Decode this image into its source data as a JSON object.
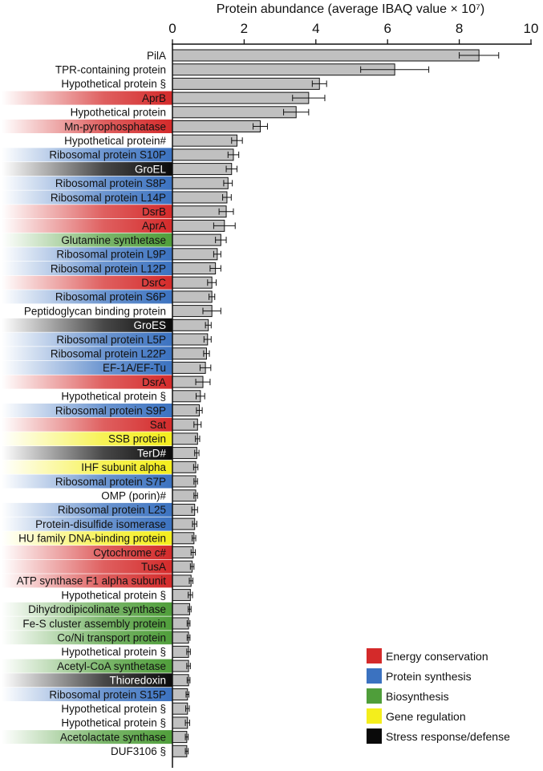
{
  "chart_data": {
    "type": "bar",
    "orientation": "horizontal",
    "title": "",
    "xlabel": "Protein abundance (average IBAQ value × 10⁷)",
    "ylabel": "",
    "xlim": [
      0,
      10
    ],
    "xticks": [
      "0",
      "2",
      "4",
      "6",
      "8",
      "10"
    ],
    "grid": false,
    "legend_position": "bottom-right",
    "categories": [
      "Energy conservation",
      "Protein synthesis",
      "Biosynthesis",
      "Gene regulation",
      "Stress response/defense"
    ],
    "category_colors": {
      "energy": "#d42a2a",
      "protein": "#3b72c0",
      "biosynthesis": "#4f9e3a",
      "gene": "#f4ee1c",
      "stress": "#0a0a0a"
    },
    "category_keys": [
      "energy",
      "protein",
      "biosynthesis",
      "gene",
      "stress"
    ],
    "bar_color": "#c0c0c0",
    "bars": [
      {
        "label": "PilA",
        "value": 8.55,
        "error": 0.55,
        "category": "none"
      },
      {
        "label": "TPR-containing protein",
        "value": 6.2,
        "error": 0.95,
        "category": "none"
      },
      {
        "label": "Hypothetical protein §",
        "value": 4.1,
        "error": 0.2,
        "category": "none"
      },
      {
        "label": "AprB",
        "value": 3.8,
        "error": 0.45,
        "category": "energy"
      },
      {
        "label": "Hypothetical protein",
        "value": 3.45,
        "error": 0.35,
        "category": "none"
      },
      {
        "label": "Mn-pyrophosphatase",
        "value": 2.45,
        "error": 0.2,
        "category": "energy"
      },
      {
        "label": "Hypothetical protein#",
        "value": 1.8,
        "error": 0.15,
        "category": "none"
      },
      {
        "label": "Ribosomal protein S10P",
        "value": 1.7,
        "error": 0.15,
        "category": "protein"
      },
      {
        "label": "GroEL",
        "value": 1.65,
        "error": 0.15,
        "category": "stress"
      },
      {
        "label": "Ribosomal protein S8P",
        "value": 1.55,
        "error": 0.12,
        "category": "protein"
      },
      {
        "label": "Ribosomal protein L14P",
        "value": 1.52,
        "error": 0.12,
        "category": "protein"
      },
      {
        "label": "DsrB",
        "value": 1.5,
        "error": 0.2,
        "category": "energy"
      },
      {
        "label": "AprA",
        "value": 1.45,
        "error": 0.3,
        "category": "energy"
      },
      {
        "label": "Glutamine synthetase",
        "value": 1.35,
        "error": 0.15,
        "category": "biosynthesis"
      },
      {
        "label": "Ribosomal protein L9P",
        "value": 1.25,
        "error": 0.1,
        "category": "protein"
      },
      {
        "label": "Ribosomal protein L12P",
        "value": 1.2,
        "error": 0.15,
        "category": "protein"
      },
      {
        "label": "DsrC",
        "value": 1.1,
        "error": 0.12,
        "category": "energy"
      },
      {
        "label": "Ribosomal protein S6P",
        "value": 1.1,
        "error": 0.08,
        "category": "protein"
      },
      {
        "label": "Peptidoglycan binding protein",
        "value": 1.1,
        "error": 0.25,
        "category": "none"
      },
      {
        "label": "GroES",
        "value": 1.0,
        "error": 0.08,
        "category": "stress"
      },
      {
        "label": "Ribosomal protein L5P",
        "value": 0.98,
        "error": 0.1,
        "category": "protein"
      },
      {
        "label": "Ribosomal protein L22P",
        "value": 0.95,
        "error": 0.08,
        "category": "protein"
      },
      {
        "label": "EF-1A/EF-Tu",
        "value": 0.92,
        "error": 0.15,
        "category": "protein"
      },
      {
        "label": "DsrA",
        "value": 0.85,
        "error": 0.2,
        "category": "energy"
      },
      {
        "label": "Hypothetical protein §",
        "value": 0.78,
        "error": 0.12,
        "category": "none"
      },
      {
        "label": "Ribosomal protein S9P",
        "value": 0.75,
        "error": 0.08,
        "category": "protein"
      },
      {
        "label": "Sat",
        "value": 0.7,
        "error": 0.1,
        "category": "energy"
      },
      {
        "label": "SSB protein",
        "value": 0.7,
        "error": 0.06,
        "category": "gene"
      },
      {
        "label": "TerD#",
        "value": 0.68,
        "error": 0.06,
        "category": "stress"
      },
      {
        "label": "IHF subunit alpha",
        "value": 0.65,
        "error": 0.06,
        "category": "gene"
      },
      {
        "label": "Ribosomal protein S7P",
        "value": 0.65,
        "error": 0.05,
        "category": "protein"
      },
      {
        "label": "OMP (porin)#",
        "value": 0.65,
        "error": 0.05,
        "category": "none"
      },
      {
        "label": "Ribosomal protein L25",
        "value": 0.62,
        "error": 0.08,
        "category": "protein"
      },
      {
        "label": "Protein-disulfide isomerase",
        "value": 0.62,
        "error": 0.06,
        "category": "protein"
      },
      {
        "label": "HU family DNA-binding protein",
        "value": 0.6,
        "error": 0.05,
        "category": "gene"
      },
      {
        "label": "Cytochrome c#",
        "value": 0.58,
        "error": 0.06,
        "category": "energy"
      },
      {
        "label": "TusA",
        "value": 0.55,
        "error": 0.05,
        "category": "energy"
      },
      {
        "label": "ATP synthase F1 alpha subunit",
        "value": 0.52,
        "error": 0.05,
        "category": "energy"
      },
      {
        "label": "Hypothetical protein §",
        "value": 0.5,
        "error": 0.06,
        "category": "none"
      },
      {
        "label": "Dihydrodipicolinate synthase",
        "value": 0.48,
        "error": 0.04,
        "category": "biosynthesis"
      },
      {
        "label": "Fe-S cluster assembly protein",
        "value": 0.45,
        "error": 0.04,
        "category": "biosynthesis"
      },
      {
        "label": "Co/Ni transport protein",
        "value": 0.45,
        "error": 0.04,
        "category": "biosynthesis"
      },
      {
        "label": "Hypothetical protein §",
        "value": 0.45,
        "error": 0.05,
        "category": "none"
      },
      {
        "label": "Acetyl-CoA synthetase",
        "value": 0.45,
        "error": 0.05,
        "category": "biosynthesis"
      },
      {
        "label": "Thioredoxin",
        "value": 0.45,
        "error": 0.04,
        "category": "stress"
      },
      {
        "label": "Ribosomal protein S15P",
        "value": 0.42,
        "error": 0.04,
        "category": "protein"
      },
      {
        "label": "Hypothetical protein §",
        "value": 0.42,
        "error": 0.05,
        "category": "none"
      },
      {
        "label": "Hypothetical protein §",
        "value": 0.42,
        "error": 0.06,
        "category": "none"
      },
      {
        "label": "Acetolactate synthase",
        "value": 0.4,
        "error": 0.04,
        "category": "biosynthesis"
      },
      {
        "label": "DUF3106 §",
        "value": 0.4,
        "error": 0.04,
        "category": "none"
      }
    ]
  }
}
